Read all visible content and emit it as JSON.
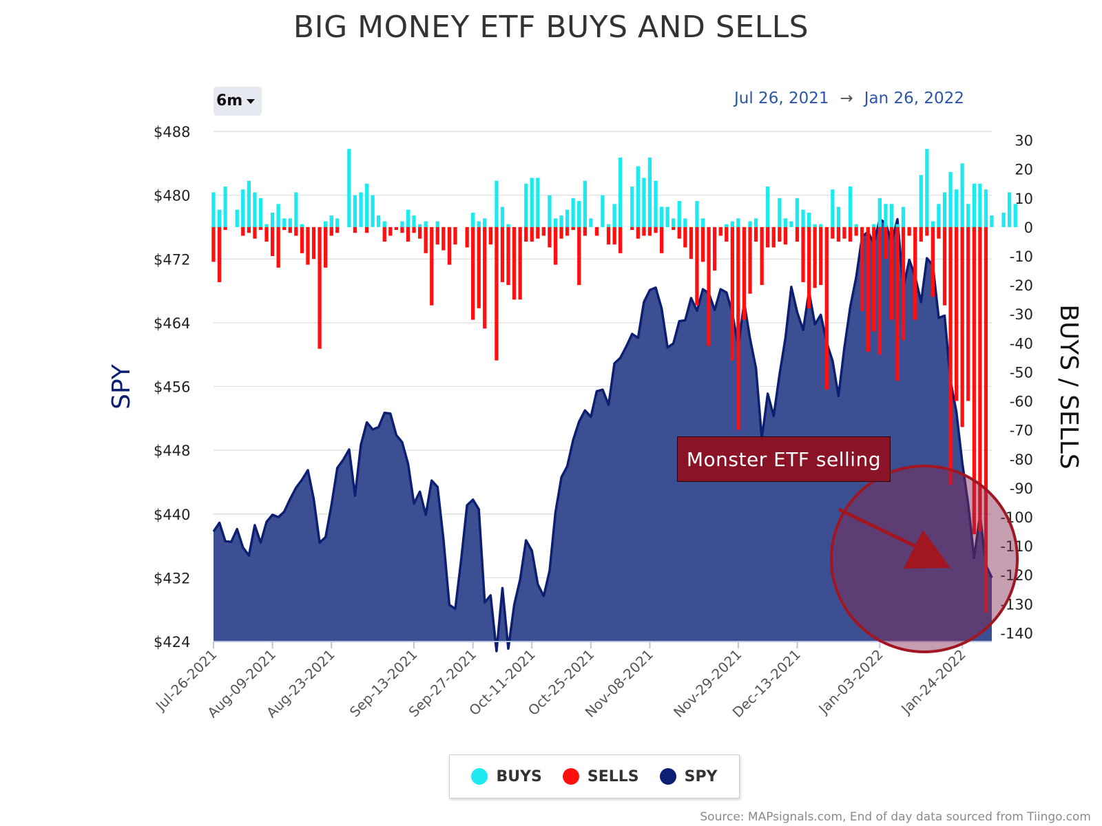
{
  "title": "BIG MONEY ETF BUYS AND SELLS",
  "range_selector": {
    "label": "6m"
  },
  "date_range": {
    "start": "Jul 26, 2021",
    "arrow": "→",
    "end": "Jan 26, 2022"
  },
  "legend": [
    {
      "label": "BUYS",
      "color": "#1de9f0"
    },
    {
      "label": "SELLS",
      "color": "#ff1010"
    },
    {
      "label": "SPY",
      "color": "#0d1f73"
    }
  ],
  "annotation": {
    "text": "Monster ETF selling"
  },
  "source": "Source: MAPsignals.com, End of day data sourced from Tiingo.com",
  "colors": {
    "buys": "#1de9f0",
    "sells": "#ff1010",
    "spy_line": "#0d1f73",
    "spy_fill": "#3c4f92",
    "annotation": "#8b1326",
    "highlight_circle": "#a11620"
  },
  "chart_data": {
    "type": "bar",
    "title": "BIG MONEY ETF BUYS AND SELLS",
    "y_left_label": "SPY",
    "y_right_label": "BUYS / SELLS",
    "y_left_ticks": [
      "$424",
      "$432",
      "$440",
      "$448",
      "$456",
      "$464",
      "$472",
      "$480",
      "$488"
    ],
    "y_left_range": [
      424,
      488
    ],
    "y_right_ticks": [
      "30",
      "20",
      "10",
      "0",
      "-10",
      "-20",
      "-30",
      "-40",
      "-50",
      "-60",
      "-70",
      "-80",
      "-90",
      "-100",
      "-110",
      "-120",
      "-130",
      "-140"
    ],
    "y_right_range": [
      -143,
      33
    ],
    "x_tick_labels": [
      "Jul-26-2021",
      "Aug-09-2021",
      "Aug-23-2021",
      "Sep-13-2021",
      "Sep-27-2021",
      "Oct-11-2021",
      "Oct-25-2021",
      "Nov-08-2021",
      "Nov-29-2021",
      "Dec-13-2021",
      "Jan-03-2022",
      "Jan-24-2022"
    ],
    "x_tick_index": [
      0,
      10,
      20,
      34,
      44,
      54,
      64,
      74,
      89,
      99,
      113,
      127
    ],
    "grid": true,
    "legend_position": "bottom",
    "series": [
      {
        "name": "BUYS",
        "type": "bar",
        "values": [
          12,
          6,
          14,
          0,
          6,
          13,
          16,
          12,
          10,
          1,
          5,
          8,
          3,
          3,
          12,
          1,
          0,
          0,
          0,
          2,
          4,
          3,
          0,
          27,
          11,
          12,
          15,
          11,
          4,
          2,
          0,
          0,
          2,
          6,
          4,
          1,
          2,
          0,
          2,
          0,
          0,
          0,
          0,
          0,
          5,
          2,
          3,
          0,
          16,
          7,
          1,
          0,
          0,
          15,
          17,
          17,
          0,
          11,
          3,
          4,
          6,
          10,
          9,
          16,
          3,
          0,
          11,
          1,
          8,
          24,
          0,
          14,
          21,
          17,
          24,
          16,
          7,
          7,
          3,
          9,
          3,
          0,
          9,
          3,
          0,
          0,
          0,
          1,
          2,
          3,
          0,
          2,
          3,
          0,
          14,
          0,
          10,
          3,
          2,
          10,
          6,
          5,
          1,
          1,
          0,
          13,
          7,
          0,
          14,
          1,
          0,
          0,
          1,
          10,
          8,
          8,
          1,
          7,
          0,
          0,
          18,
          27,
          2,
          8,
          12,
          19,
          13,
          22,
          8,
          15,
          15,
          13,
          4,
          0,
          5,
          12,
          8
        ],
        "unit": "count"
      },
      {
        "name": "SELLS",
        "type": "bar",
        "values": [
          -12,
          -19,
          -1,
          0,
          0,
          -3,
          -2,
          -4,
          -1,
          -5,
          -10,
          -14,
          -1,
          -2,
          -3,
          -9,
          -13,
          -11,
          -42,
          -14,
          -3,
          -2,
          0,
          0,
          -2,
          0,
          -2,
          0,
          0,
          -5,
          -3,
          -1,
          -2,
          -5,
          -2,
          -4,
          -9,
          -27,
          -6,
          -8,
          -13,
          -6,
          0,
          -7,
          -32,
          -28,
          -35,
          -6,
          -46,
          -19,
          -20,
          -25,
          -25,
          -5,
          -5,
          -4,
          -3,
          -7,
          -13,
          -4,
          -3,
          -1,
          -20,
          -3,
          0,
          -3,
          0,
          -6,
          -6,
          -9,
          0,
          -1,
          -4,
          -3,
          -3,
          -2,
          -9,
          0,
          -1,
          -4,
          -7,
          -11,
          -27,
          -12,
          -41,
          -15,
          -3,
          -5,
          -46,
          -70,
          -32,
          -23,
          -5,
          -20,
          -7,
          -7,
          -5,
          -6,
          0,
          -5,
          -19,
          -28,
          -21,
          -20,
          -56,
          -4,
          -5,
          -4,
          -5,
          -3,
          -29,
          -43,
          -36,
          -44,
          -11,
          -32,
          -53,
          -39,
          -3,
          -32,
          -5,
          -3,
          -24,
          -4,
          -27,
          -89,
          -60,
          -69,
          -60,
          -106,
          -105,
          -133
        ]
      },
      {
        "name": "SPY",
        "type": "area",
        "values": [
          437.8,
          438.9,
          436.6,
          436.5,
          438.1,
          435.8,
          434.8,
          438.6,
          436.4,
          439.0,
          439.9,
          439.6,
          440.3,
          441.9,
          443.3,
          444.3,
          445.5,
          441.9,
          436.4,
          437.1,
          441.1,
          445.8,
          446.8,
          448.1,
          442.3,
          448.7,
          451.5,
          450.6,
          450.9,
          452.7,
          452.6,
          449.9,
          449.0,
          446.3,
          441.3,
          442.8,
          439.9,
          444.2,
          443.4,
          436.8,
          428.6,
          428.1,
          434.2,
          441.1,
          441.8,
          440.6,
          428.9,
          429.8,
          422.8,
          430.7,
          423.1,
          428.6,
          431.8,
          436.7,
          435.4,
          431.2,
          429.7,
          432.9,
          440.2,
          444.6,
          446.0,
          449.3,
          451.6,
          453.0,
          452.2,
          455.4,
          455.6,
          453.7,
          458.9,
          459.6,
          461.0,
          462.6,
          462.1,
          466.6,
          468.1,
          468.4,
          465.8,
          460.9,
          461.4,
          464.2,
          464.3,
          467.1,
          465.5,
          468.2,
          467.7,
          465.6,
          468.2,
          467.8,
          465.2,
          461.0,
          466.5,
          462.0,
          458.3,
          449.5,
          455.1,
          452.3,
          457.5,
          462.1,
          468.5,
          465.3,
          463.1,
          467.9,
          463.8,
          465.0,
          461.5,
          459.2,
          454.8,
          460.9,
          466.0,
          469.7,
          474.8,
          475.4,
          474.0,
          477.0,
          476.5,
          474.1,
          477.0,
          468.4,
          471.9,
          469.8,
          466.6,
          472.1,
          471.2,
          464.6,
          464.9,
          456.7,
          452.8,
          446.4,
          441.2,
          434.5,
          439.9,
          433.6,
          432.0
        ]
      }
    ]
  }
}
